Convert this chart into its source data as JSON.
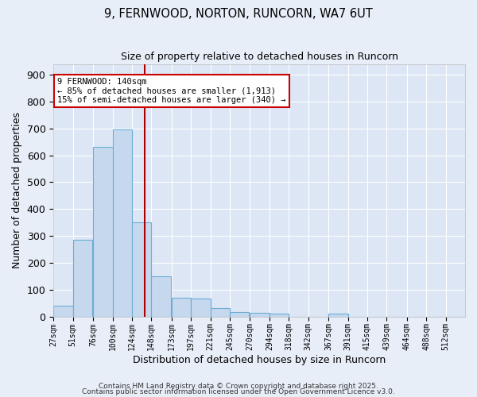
{
  "title": "9, FERNWOOD, NORTON, RUNCORN, WA7 6UT",
  "subtitle": "Size of property relative to detached houses in Runcorn",
  "xlabel": "Distribution of detached houses by size in Runcorn",
  "ylabel": "Number of detached properties",
  "bin_left_edges": [
    27,
    51,
    76,
    100,
    124,
    148,
    173,
    197,
    221,
    245,
    270,
    294,
    318,
    342,
    367,
    391,
    415,
    439,
    464,
    488,
    512
  ],
  "bar_heights": [
    40,
    285,
    630,
    695,
    350,
    150,
    70,
    68,
    30,
    15,
    12,
    10,
    0,
    0,
    10,
    0,
    0,
    0,
    0,
    0,
    0
  ],
  "bar_color": "#c5d8ee",
  "bar_edgecolor": "#6badd6",
  "property_size": 140,
  "vline_color": "#aa0000",
  "annotation_lines": [
    "9 FERNWOOD: 140sqm",
    "← 85% of detached houses are smaller (1,913)",
    "15% of semi-detached houses are larger (340) →"
  ],
  "annotation_box_edgecolor": "#cc0000",
  "annotation_box_facecolor": "#ffffff",
  "ylim": [
    0,
    940
  ],
  "yticks": [
    0,
    100,
    200,
    300,
    400,
    500,
    600,
    700,
    800,
    900
  ],
  "tick_labels": [
    "27sqm",
    "51sqm",
    "76sqm",
    "100sqm",
    "124sqm",
    "148sqm",
    "173sqm",
    "197sqm",
    "221sqm",
    "245sqm",
    "270sqm",
    "294sqm",
    "318sqm",
    "342sqm",
    "367sqm",
    "391sqm",
    "415sqm",
    "439sqm",
    "464sqm",
    "488sqm",
    "512sqm"
  ],
  "background_color": "#dce6f5",
  "grid_color": "#ffffff",
  "fig_facecolor": "#e8eef8",
  "footer_line1": "Contains HM Land Registry data © Crown copyright and database right 2025.",
  "footer_line2": "Contains public sector information licensed under the Open Government Licence v3.0."
}
